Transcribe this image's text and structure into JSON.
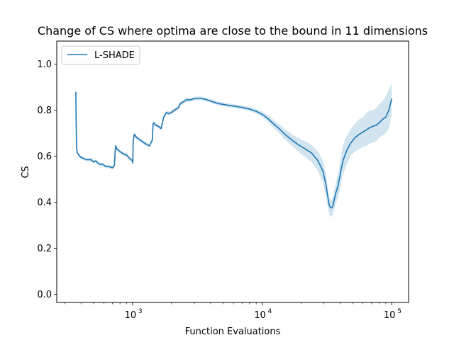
{
  "chart_data": {
    "type": "line",
    "title": "Change of CS where optima are close to the bound in 11 dimensions",
    "xlabel": "Function Evaluations",
    "ylabel": "CS",
    "xscale": "log",
    "xlim": [
      260,
      135000
    ],
    "ylim": [
      -0.035,
      1.1
    ],
    "yticks": [
      0.0,
      0.2,
      0.4,
      0.6,
      0.8,
      1.0
    ],
    "ytick_labels": [
      "0.0",
      "0.2",
      "0.4",
      "0.6",
      "0.8",
      "1.0"
    ],
    "xticks_major": [
      1000,
      10000,
      100000
    ],
    "xtick_labels": [
      {
        "base": "10",
        "exp": "3"
      },
      {
        "base": "10",
        "exp": "4"
      },
      {
        "base": "10",
        "exp": "5"
      }
    ],
    "grid": false,
    "legend": {
      "position": "top-left",
      "entries": [
        "L-SHADE"
      ]
    },
    "colors": {
      "line": "#1f77b4",
      "band": "#1f77b4"
    },
    "series": [
      {
        "name": "L-SHADE",
        "x": [
          365,
          367,
          370,
          375,
          385,
          400,
          420,
          440,
          460,
          480,
          500,
          520,
          540,
          560,
          590,
          620,
          660,
          700,
          725,
          730,
          740,
          760,
          800,
          850,
          900,
          950,
          1000,
          1005,
          1010,
          1030,
          1080,
          1150,
          1250,
          1350,
          1420,
          1440,
          1460,
          1500,
          1580,
          1660,
          1740,
          1780,
          1800,
          1840,
          1900,
          2000,
          2100,
          2250,
          2350,
          2450,
          2600,
          2800,
          3000,
          3300,
          3600,
          4000,
          4500,
          5000,
          6000,
          7000,
          8000,
          9000,
          10000,
          11000,
          12000,
          13500,
          15000,
          17000,
          19000,
          21000,
          24000,
          27000,
          29500,
          31000,
          32000,
          33000,
          34000,
          35000,
          36000,
          37000,
          38500,
          40000,
          42000,
          45000,
          48000,
          52000,
          56000,
          60000,
          64000,
          68000,
          72000,
          76000,
          80000,
          85000,
          90000,
          95000,
          100000
        ],
        "y": [
          0.88,
          0.75,
          0.63,
          0.615,
          0.605,
          0.595,
          0.59,
          0.585,
          0.585,
          0.585,
          0.575,
          0.58,
          0.57,
          0.565,
          0.565,
          0.555,
          0.555,
          0.55,
          0.56,
          0.6,
          0.645,
          0.63,
          0.62,
          0.61,
          0.605,
          0.59,
          0.58,
          0.57,
          0.66,
          0.695,
          0.68,
          0.67,
          0.655,
          0.645,
          0.67,
          0.74,
          0.745,
          0.735,
          0.73,
          0.72,
          0.77,
          0.78,
          0.785,
          0.79,
          0.785,
          0.79,
          0.8,
          0.81,
          0.83,
          0.835,
          0.845,
          0.845,
          0.85,
          0.852,
          0.848,
          0.84,
          0.83,
          0.825,
          0.818,
          0.812,
          0.805,
          0.795,
          0.782,
          0.765,
          0.745,
          0.72,
          0.695,
          0.67,
          0.65,
          0.635,
          0.615,
          0.58,
          0.535,
          0.48,
          0.43,
          0.385,
          0.375,
          0.38,
          0.41,
          0.44,
          0.47,
          0.52,
          0.58,
          0.625,
          0.655,
          0.68,
          0.695,
          0.705,
          0.715,
          0.725,
          0.73,
          0.735,
          0.745,
          0.76,
          0.77,
          0.8,
          0.85
        ],
        "lower": [
          0.88,
          0.75,
          0.625,
          0.608,
          0.598,
          0.588,
          0.583,
          0.578,
          0.578,
          0.578,
          0.568,
          0.573,
          0.563,
          0.558,
          0.558,
          0.548,
          0.548,
          0.543,
          0.553,
          0.59,
          0.635,
          0.622,
          0.612,
          0.602,
          0.597,
          0.582,
          0.572,
          0.562,
          0.65,
          0.685,
          0.672,
          0.662,
          0.647,
          0.637,
          0.66,
          0.73,
          0.737,
          0.727,
          0.722,
          0.712,
          0.762,
          0.772,
          0.777,
          0.782,
          0.777,
          0.782,
          0.792,
          0.802,
          0.822,
          0.827,
          0.837,
          0.837,
          0.842,
          0.844,
          0.84,
          0.832,
          0.822,
          0.817,
          0.81,
          0.804,
          0.796,
          0.785,
          0.77,
          0.75,
          0.728,
          0.7,
          0.672,
          0.645,
          0.62,
          0.6,
          0.575,
          0.535,
          0.485,
          0.43,
          0.385,
          0.345,
          0.335,
          0.345,
          0.37,
          0.395,
          0.42,
          0.46,
          0.52,
          0.565,
          0.6,
          0.62,
          0.63,
          0.64,
          0.645,
          0.655,
          0.66,
          0.665,
          0.68,
          0.69,
          0.7,
          0.72,
          0.78
        ],
        "upper": [
          0.88,
          0.75,
          0.635,
          0.622,
          0.612,
          0.602,
          0.597,
          0.592,
          0.592,
          0.592,
          0.582,
          0.587,
          0.577,
          0.572,
          0.572,
          0.562,
          0.562,
          0.557,
          0.567,
          0.61,
          0.655,
          0.638,
          0.628,
          0.618,
          0.613,
          0.598,
          0.588,
          0.578,
          0.67,
          0.705,
          0.688,
          0.678,
          0.663,
          0.653,
          0.68,
          0.75,
          0.753,
          0.743,
          0.738,
          0.728,
          0.778,
          0.788,
          0.793,
          0.798,
          0.793,
          0.798,
          0.808,
          0.818,
          0.838,
          0.843,
          0.853,
          0.853,
          0.858,
          0.86,
          0.856,
          0.848,
          0.838,
          0.833,
          0.826,
          0.82,
          0.814,
          0.805,
          0.794,
          0.78,
          0.762,
          0.74,
          0.718,
          0.695,
          0.68,
          0.668,
          0.65,
          0.62,
          0.58,
          0.525,
          0.47,
          0.42,
          0.41,
          0.42,
          0.45,
          0.485,
          0.52,
          0.58,
          0.645,
          0.69,
          0.715,
          0.74,
          0.76,
          0.77,
          0.79,
          0.8,
          0.8,
          0.81,
          0.825,
          0.84,
          0.86,
          0.89,
          0.92
        ]
      }
    ]
  }
}
